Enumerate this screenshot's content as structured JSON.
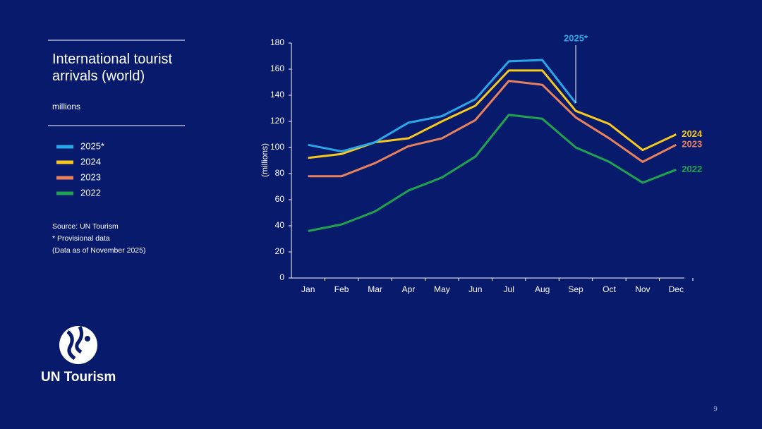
{
  "chart_data": {
    "type": "line",
    "title": "International tourist arrivals (world)",
    "subtitle": "millions",
    "y_label": "(millions)",
    "notes": [
      "Source: UN Tourism",
      "* Provisional data",
      "(Data as of November 2025)"
    ],
    "categories": [
      "Jan",
      "Feb",
      "Mar",
      "Apr",
      "May",
      "Jun",
      "Jul",
      "Aug",
      "Sep",
      "Oct",
      "Nov",
      "Dec"
    ],
    "series": [
      {
        "name": "2025*",
        "color": "#2aa7e6",
        "values": [
          102,
          97,
          104,
          119,
          124,
          137,
          166,
          167,
          134,
          null,
          null,
          null
        ]
      },
      {
        "name": "2024",
        "color": "#f7c81e",
        "values": [
          92,
          95,
          104,
          107,
          120,
          132,
          159,
          159,
          128,
          118,
          98,
          110
        ]
      },
      {
        "name": "2023",
        "color": "#e8825c",
        "values": [
          78,
          78,
          88,
          101,
          107,
          121,
          151,
          148,
          123,
          107,
          89,
          102
        ]
      },
      {
        "name": "2022",
        "color": "#1fa34e",
        "values": [
          36,
          41,
          51,
          67,
          77,
          93,
          125,
          122,
          100,
          89,
          73,
          83
        ]
      }
    ],
    "ylim": [
      0,
      180
    ],
    "yticks": [
      0,
      20,
      40,
      60,
      80,
      100,
      120,
      140,
      160,
      180
    ],
    "grid": false
  },
  "footer": {
    "logo": "UN Tourism",
    "page": "9"
  }
}
